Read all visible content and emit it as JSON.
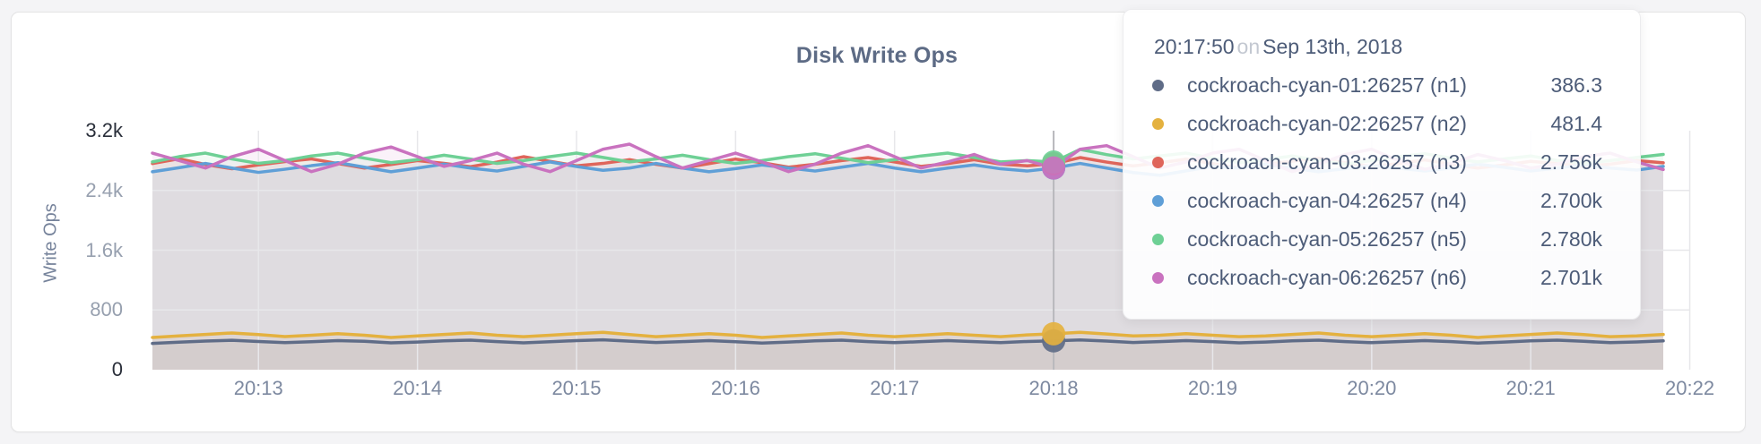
{
  "card": {
    "title": "Disk Write Ops"
  },
  "tooltip": {
    "time": "20:17:50",
    "on_word": "on",
    "date": "Sep 13th, 2018"
  },
  "chart_data": {
    "type": "line",
    "title": "Disk Write Ops",
    "xlabel": "",
    "ylabel": "Write Ops",
    "ylim": [
      0,
      3200
    ],
    "grid": true,
    "legend_position": "hover-tooltip",
    "x_start_time": "20:12:20",
    "x_step_seconds": 10,
    "x_ticks": [
      {
        "label": "20:13",
        "index": 4
      },
      {
        "label": "20:14",
        "index": 10
      },
      {
        "label": "20:15",
        "index": 16
      },
      {
        "label": "20:16",
        "index": 22
      },
      {
        "label": "20:17",
        "index": 28
      },
      {
        "label": "20:18",
        "index": 34
      },
      {
        "label": "20:19",
        "index": 40
      },
      {
        "label": "20:20",
        "index": 46
      },
      {
        "label": "20:21",
        "index": 52
      },
      {
        "label": "20:22",
        "index": 58
      }
    ],
    "y_ticks": [
      {
        "label": "0",
        "value": 0,
        "dark": true,
        "grid": false
      },
      {
        "label": "800",
        "value": 800,
        "dark": false,
        "grid": true
      },
      {
        "label": "1.6k",
        "value": 1600,
        "dark": false,
        "grid": true
      },
      {
        "label": "2.4k",
        "value": 2400,
        "dark": false,
        "grid": true
      },
      {
        "label": "3.2k",
        "value": 3200,
        "dark": true,
        "grid": false
      }
    ],
    "hover": {
      "index": 34,
      "time": "20:17:50",
      "date": "Sep 13th, 2018"
    },
    "area_opacity": 0.09,
    "hover_line_color": "#b8b8bc",
    "grid_color_h": "#e7e7ea",
    "grid_color_v": "#e7e7ea",
    "series": [
      {
        "name": "cockroach-cyan-01:26257 (n1)",
        "color": "#5f6c87",
        "hover_value_label": "386.3",
        "values": [
          352,
          368,
          384,
          394,
          378,
          362,
          374,
          390,
          380,
          360,
          370,
          386,
          396,
          376,
          360,
          374,
          390,
          400,
          382,
          364,
          376,
          390,
          374,
          356,
          370,
          386,
          396,
          376,
          362,
          376,
          390,
          376,
          362,
          378,
          386.3,
          398,
          384,
          364,
          376,
          390,
          376,
          360,
          370,
          386,
          396,
          376,
          362,
          376,
          390,
          376,
          356,
          370,
          386,
          396,
          380,
          362,
          372,
          386
        ]
      },
      {
        "name": "cockroach-cyan-02:26257 (n2)",
        "color": "#e4b13f",
        "hover_value_label": "481.4",
        "values": [
          432,
          452,
          472,
          492,
          470,
          444,
          462,
          482,
          462,
          432,
          452,
          472,
          492,
          462,
          442,
          462,
          482,
          500,
          470,
          442,
          462,
          482,
          462,
          432,
          452,
          472,
          492,
          462,
          442,
          462,
          482,
          462,
          442,
          466,
          481.4,
          500,
          478,
          452,
          462,
          482,
          462,
          442,
          452,
          472,
          492,
          462,
          442,
          462,
          482,
          462,
          432,
          452,
          472,
          492,
          470,
          442,
          452,
          472
        ]
      },
      {
        "name": "cockroach-cyan-03:26257 (n3)",
        "color": "#df655b",
        "hover_value_label": "2.756k",
        "values": [
          2760,
          2824,
          2748,
          2690,
          2742,
          2786,
          2822,
          2760,
          2700,
          2748,
          2800,
          2762,
          2718,
          2780,
          2852,
          2790,
          2730,
          2762,
          2812,
          2750,
          2700,
          2760,
          2820,
          2772,
          2712,
          2750,
          2800,
          2840,
          2782,
          2722,
          2760,
          2812,
          2752,
          2730,
          2756,
          2840,
          2780,
          2728,
          2770,
          2820,
          2760,
          2700,
          2750,
          2792,
          2832,
          2770,
          2720,
          2760,
          2810,
          2750,
          2700,
          2742,
          2790,
          2760,
          2722,
          2752,
          2800,
          2770
        ]
      },
      {
        "name": "cockroach-cyan-04:26257 (n4)",
        "color": "#5f9fd7",
        "hover_value_label": "2.700k",
        "values": [
          2650,
          2704,
          2762,
          2700,
          2642,
          2684,
          2732,
          2772,
          2712,
          2650,
          2700,
          2752,
          2700,
          2660,
          2722,
          2782,
          2720,
          2670,
          2700,
          2762,
          2700,
          2650,
          2692,
          2742,
          2700,
          2660,
          2712,
          2762,
          2700,
          2650,
          2700,
          2742,
          2690,
          2660,
          2700,
          2762,
          2700,
          2640,
          2602,
          2662,
          2722,
          2700,
          2752,
          2700,
          2650,
          2692,
          2732,
          2700,
          2660,
          2700,
          2752,
          2710,
          2660,
          2700,
          2742,
          2700,
          2672,
          2722
        ]
      },
      {
        "name": "cockroach-cyan-05:26257 (n5)",
        "color": "#6ed095",
        "hover_value_label": "2.780k",
        "values": [
          2782,
          2852,
          2900,
          2822,
          2762,
          2800,
          2862,
          2900,
          2832,
          2772,
          2812,
          2872,
          2820,
          2762,
          2800,
          2852,
          2900,
          2842,
          2782,
          2822,
          2872,
          2812,
          2762,
          2800,
          2852,
          2892,
          2832,
          2772,
          2812,
          2862,
          2900,
          2842,
          2782,
          2800,
          2780,
          2950,
          2880,
          2822,
          2862,
          2900,
          2832,
          2772,
          2812,
          2862,
          2800,
          2752,
          2800,
          2852,
          2892,
          2832,
          2782,
          2822,
          2862,
          2800,
          2762,
          2800,
          2842,
          2882
        ]
      },
      {
        "name": "cockroach-cyan-06:26257 (n6)",
        "color": "#c972bf",
        "hover_value_label": "2.701k",
        "values": [
          2900,
          2800,
          2700,
          2852,
          2952,
          2800,
          2652,
          2752,
          2900,
          2982,
          2852,
          2722,
          2800,
          2900,
          2752,
          2652,
          2800,
          2952,
          3020,
          2852,
          2700,
          2800,
          2900,
          2782,
          2652,
          2752,
          2900,
          3000,
          2852,
          2700,
          2782,
          2882,
          2752,
          2800,
          2701,
          2952,
          3000,
          2852,
          2700,
          2782,
          2900,
          2952,
          2800,
          2652,
          2752,
          2882,
          2952,
          2800,
          2682,
          2762,
          2882,
          2800,
          2700,
          2752,
          2852,
          2900,
          2782,
          2680
        ]
      }
    ]
  }
}
